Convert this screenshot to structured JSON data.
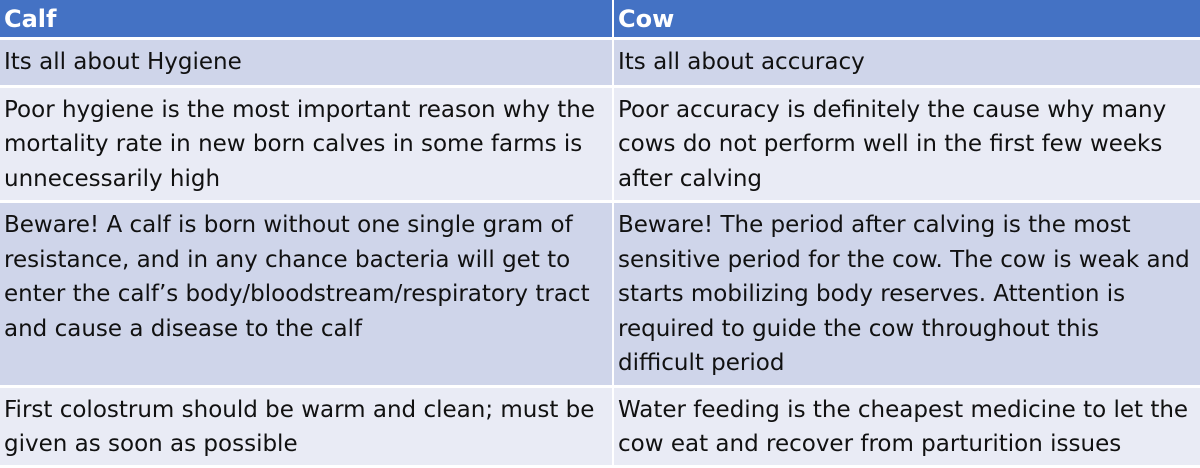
{
  "table": {
    "headers": [
      "Calf",
      "Cow"
    ],
    "rows": [
      {
        "calf": [
          "Its all about Hygiene"
        ],
        "cow": [
          "Its all about accuracy"
        ]
      },
      {
        "calf": [
          "Poor hygiene is the most important reason why the",
          "mortality rate in new born calves in some farms is",
          "unnecessarily high"
        ],
        "cow": [
          "Poor accuracy is definitely the cause why many",
          "cows do not perform well in the first few weeks",
          "after calving"
        ]
      },
      {
        "calf": [
          "Beware! A calf is born without one single gram of",
          "resistance, and in any chance bacteria will get to",
          "enter the calf’s body/bloodstream/respiratory tract",
          "and cause a disease to the calf"
        ],
        "cow": [
          "Beware! The period after calving is the most",
          "sensitive period for the cow. The cow is weak and",
          "starts mobilizing body reserves. Attention is",
          "required to guide the cow throughout this",
          "difficult period"
        ]
      },
      {
        "calf": [
          "First colostrum should be warm and clean; must be",
          "given as soon as possible"
        ],
        "cow": [
          "Water feeding is the cheapest medicine to let the",
          "cow eat and recover from parturition issues"
        ]
      }
    ]
  },
  "colors": {
    "header_bg": "#4472c4",
    "header_text": "#ffffff",
    "row_band_dark": "#cfd5ea",
    "row_band_light": "#e9ebf5"
  }
}
